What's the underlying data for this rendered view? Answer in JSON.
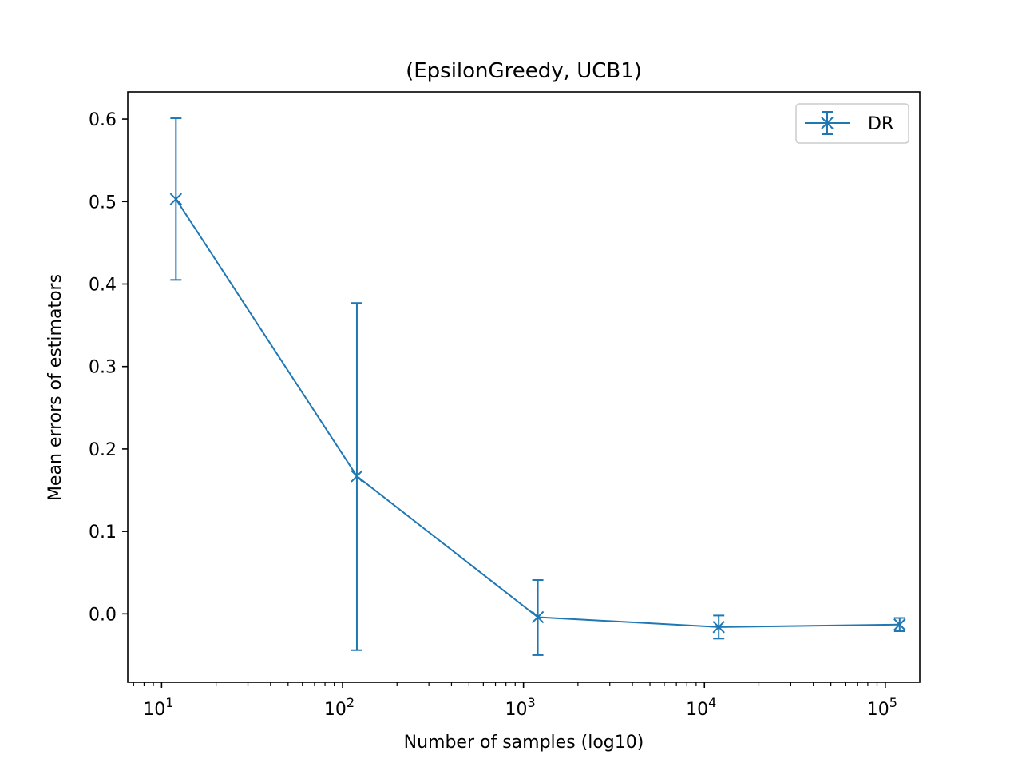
{
  "chart_data": {
    "type": "line",
    "title": "(EpsilonGreedy, UCB1)",
    "xlabel": "Number of samples (log10)",
    "ylabel": "Mean errors of estimators",
    "x_scale": "log",
    "xlim": [
      6.5,
      155000
    ],
    "ylim": [
      -0.083,
      0.633
    ],
    "x_ticks": [
      {
        "value": 10,
        "base": "10",
        "exp": "1"
      },
      {
        "value": 100,
        "base": "10",
        "exp": "2"
      },
      {
        "value": 1000,
        "base": "10",
        "exp": "3"
      },
      {
        "value": 10000,
        "base": "10",
        "exp": "4"
      },
      {
        "value": 100000,
        "base": "10",
        "exp": "5"
      }
    ],
    "y_ticks": [
      {
        "value": 0.0,
        "label": "0.0"
      },
      {
        "value": 0.1,
        "label": "0.1"
      },
      {
        "value": 0.2,
        "label": "0.2"
      },
      {
        "value": 0.3,
        "label": "0.3"
      },
      {
        "value": 0.4,
        "label": "0.4"
      },
      {
        "value": 0.5,
        "label": "0.5"
      },
      {
        "value": 0.6,
        "label": "0.6"
      }
    ],
    "grid": false,
    "legend_position": "top-right",
    "series": [
      {
        "name": "DR",
        "color": "#1f77b4",
        "marker": "x",
        "points": [
          {
            "x": 12,
            "y": 0.503,
            "err_low": 0.405,
            "err_high": 0.601
          },
          {
            "x": 120,
            "y": 0.167,
            "err_low": -0.044,
            "err_high": 0.377
          },
          {
            "x": 1200,
            "y": -0.004,
            "err_low": -0.05,
            "err_high": 0.041
          },
          {
            "x": 12000,
            "y": -0.016,
            "err_low": -0.03,
            "err_high": -0.002
          },
          {
            "x": 120000,
            "y": -0.013,
            "err_low": -0.021,
            "err_high": -0.005
          }
        ]
      }
    ]
  }
}
